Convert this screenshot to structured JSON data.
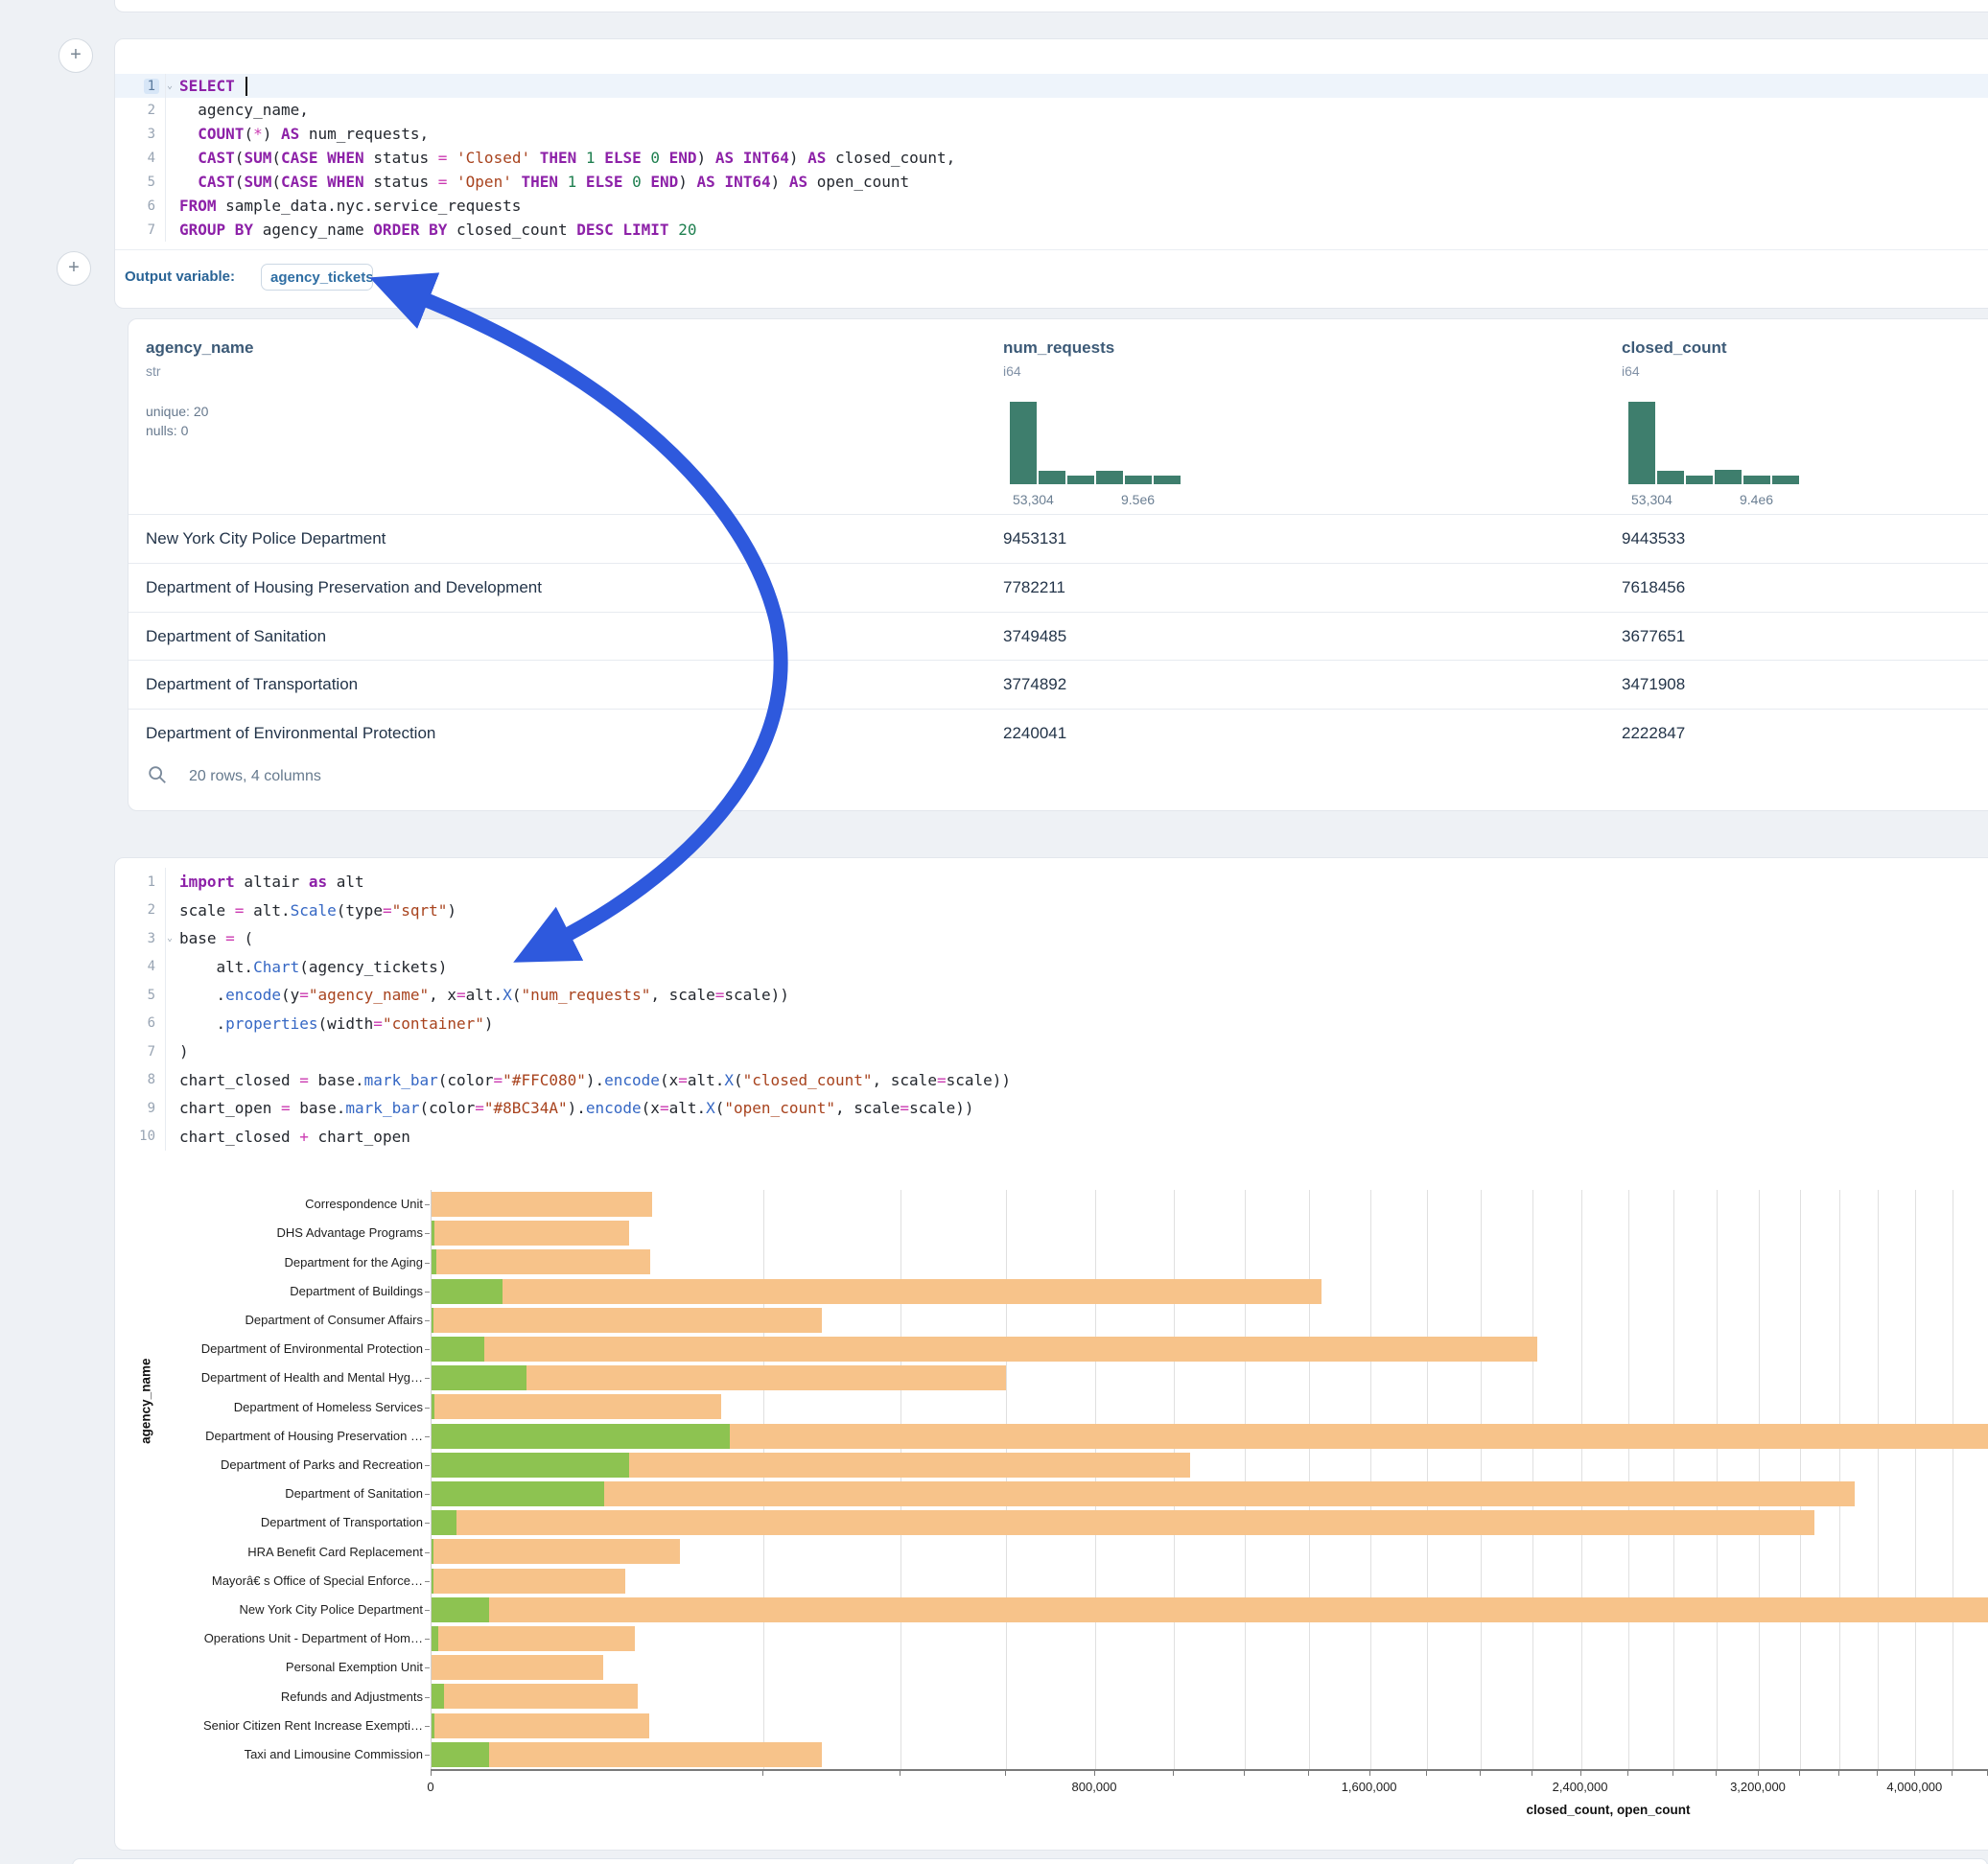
{
  "page": {
    "bg": "#eef1f5"
  },
  "sql_cell": {
    "add_button_label": "+",
    "language": "sql",
    "lines": [
      [
        [
          "k",
          "SELECT"
        ],
        [
          "p",
          " "
        ]
      ],
      [
        [
          "p",
          "  agency_name,"
        ]
      ],
      [
        [
          "p",
          "  "
        ],
        [
          "k",
          "COUNT"
        ],
        [
          "p",
          "("
        ],
        [
          "o",
          "*"
        ],
        [
          "p",
          ") "
        ],
        [
          "k",
          "AS"
        ],
        [
          "p",
          " num_requests,"
        ]
      ],
      [
        [
          "p",
          "  "
        ],
        [
          "k",
          "CAST"
        ],
        [
          "p",
          "("
        ],
        [
          "k",
          "SUM"
        ],
        [
          "p",
          "("
        ],
        [
          "k",
          "CASE WHEN"
        ],
        [
          "p",
          " status "
        ],
        [
          "o",
          "="
        ],
        [
          "p",
          " "
        ],
        [
          "s",
          "'Closed'"
        ],
        [
          "p",
          " "
        ],
        [
          "k",
          "THEN"
        ],
        [
          "p",
          " "
        ],
        [
          "n",
          "1"
        ],
        [
          "p",
          " "
        ],
        [
          "k",
          "ELSE"
        ],
        [
          "p",
          " "
        ],
        [
          "n",
          "0"
        ],
        [
          "p",
          " "
        ],
        [
          "k",
          "END"
        ],
        [
          "p",
          ") "
        ],
        [
          "k",
          "AS"
        ],
        [
          "p",
          " "
        ],
        [
          "k",
          "INT64"
        ],
        [
          "p",
          ") "
        ],
        [
          "k",
          "AS"
        ],
        [
          "p",
          " closed_count,"
        ]
      ],
      [
        [
          "p",
          "  "
        ],
        [
          "k",
          "CAST"
        ],
        [
          "p",
          "("
        ],
        [
          "k",
          "SUM"
        ],
        [
          "p",
          "("
        ],
        [
          "k",
          "CASE WHEN"
        ],
        [
          "p",
          " status "
        ],
        [
          "o",
          "="
        ],
        [
          "p",
          " "
        ],
        [
          "s",
          "'Open'"
        ],
        [
          "p",
          " "
        ],
        [
          "k",
          "THEN"
        ],
        [
          "p",
          " "
        ],
        [
          "n",
          "1"
        ],
        [
          "p",
          " "
        ],
        [
          "k",
          "ELSE"
        ],
        [
          "p",
          " "
        ],
        [
          "n",
          "0"
        ],
        [
          "p",
          " "
        ],
        [
          "k",
          "END"
        ],
        [
          "p",
          ") "
        ],
        [
          "k",
          "AS"
        ],
        [
          "p",
          " "
        ],
        [
          "k",
          "INT64"
        ],
        [
          "p",
          ") "
        ],
        [
          "k",
          "AS"
        ],
        [
          "p",
          " open_count"
        ]
      ],
      [
        [
          "k",
          "FROM"
        ],
        [
          "p",
          " sample_data.nyc.service_requests"
        ]
      ],
      [
        [
          "k",
          "GROUP BY"
        ],
        [
          "p",
          " agency_name "
        ],
        [
          "k",
          "ORDER BY"
        ],
        [
          "p",
          " closed_count "
        ],
        [
          "k",
          "DESC"
        ],
        [
          "p",
          " "
        ],
        [
          "k",
          "LIMIT"
        ],
        [
          "p",
          " "
        ],
        [
          "n",
          "20"
        ]
      ]
    ],
    "active_line": 1,
    "chevron_lines": [
      1
    ],
    "output_variable_label": "Output variable:",
    "output_variable_value": "agency_tickets"
  },
  "table": {
    "columns": [
      {
        "name": "agency_name",
        "type": "str",
        "stats": [
          "unique: 20",
          "nulls: 0"
        ]
      },
      {
        "name": "num_requests",
        "type": "i64",
        "hist": [
          100,
          16,
          10,
          16,
          10,
          10
        ],
        "axis_min": "53,304",
        "axis_max": "9.5e6"
      },
      {
        "name": "closed_count",
        "type": "i64",
        "hist": [
          100,
          16,
          10,
          17,
          10,
          10
        ],
        "axis_min": "53,304",
        "axis_max": "9.4e6"
      }
    ],
    "rows": [
      {
        "agency_name": "New York City Police Department",
        "num_requests": "9453131",
        "closed_count": "9443533"
      },
      {
        "agency_name": "Department of Housing Preservation and Development",
        "num_requests": "7782211",
        "closed_count": "7618456"
      },
      {
        "agency_name": "Department of Sanitation",
        "num_requests": "3749485",
        "closed_count": "3677651"
      },
      {
        "agency_name": "Department of Transportation",
        "num_requests": "3774892",
        "closed_count": "3471908"
      },
      {
        "agency_name": "Department of Environmental Protection",
        "num_requests": "2240041",
        "closed_count": "2222847"
      }
    ],
    "footer": "20 rows, 4 columns"
  },
  "python_cell": {
    "language": "python",
    "lines": [
      [
        [
          "k",
          "import"
        ],
        [
          "p",
          " altair "
        ],
        [
          "k",
          "as"
        ],
        [
          "p",
          " alt"
        ]
      ],
      [
        [
          "p",
          "scale "
        ],
        [
          "o",
          "="
        ],
        [
          "p",
          " alt."
        ],
        [
          "f",
          "Scale"
        ],
        [
          "p",
          "(type"
        ],
        [
          "o",
          "="
        ],
        [
          "s",
          "\"sqrt\""
        ],
        [
          "p",
          ")"
        ]
      ],
      [
        [
          "p",
          "base "
        ],
        [
          "o",
          "="
        ],
        [
          "p",
          " ("
        ]
      ],
      [
        [
          "p",
          "    alt."
        ],
        [
          "f",
          "Chart"
        ],
        [
          "p",
          "(agency_tickets)"
        ]
      ],
      [
        [
          "p",
          "    ."
        ],
        [
          "f",
          "encode"
        ],
        [
          "p",
          "(y"
        ],
        [
          "o",
          "="
        ],
        [
          "s",
          "\"agency_name\""
        ],
        [
          "p",
          ", x"
        ],
        [
          "o",
          "="
        ],
        [
          "p",
          "alt."
        ],
        [
          "f",
          "X"
        ],
        [
          "p",
          "("
        ],
        [
          "s",
          "\"num_requests\""
        ],
        [
          "p",
          ", scale"
        ],
        [
          "o",
          "="
        ],
        [
          "p",
          "scale))"
        ]
      ],
      [
        [
          "p",
          "    ."
        ],
        [
          "f",
          "properties"
        ],
        [
          "p",
          "(width"
        ],
        [
          "o",
          "="
        ],
        [
          "s",
          "\"container\""
        ],
        [
          "p",
          ")"
        ]
      ],
      [
        [
          "p",
          ")"
        ]
      ],
      [
        [
          "p",
          "chart_closed "
        ],
        [
          "o",
          "="
        ],
        [
          "p",
          " base."
        ],
        [
          "f",
          "mark_bar"
        ],
        [
          "p",
          "(color"
        ],
        [
          "o",
          "="
        ],
        [
          "s",
          "\"#FFC080\""
        ],
        [
          "p",
          ")."
        ],
        [
          "f",
          "encode"
        ],
        [
          "p",
          "(x"
        ],
        [
          "o",
          "="
        ],
        [
          "p",
          "alt."
        ],
        [
          "f",
          "X"
        ],
        [
          "p",
          "("
        ],
        [
          "s",
          "\"closed_count\""
        ],
        [
          "p",
          ", scale"
        ],
        [
          "o",
          "="
        ],
        [
          "p",
          "scale))"
        ]
      ],
      [
        [
          "p",
          "chart_open "
        ],
        [
          "o",
          "="
        ],
        [
          "p",
          " base."
        ],
        [
          "f",
          "mark_bar"
        ],
        [
          "p",
          "(color"
        ],
        [
          "o",
          "="
        ],
        [
          "s",
          "\"#8BC34A\""
        ],
        [
          "p",
          ")."
        ],
        [
          "f",
          "encode"
        ],
        [
          "p",
          "(x"
        ],
        [
          "o",
          "="
        ],
        [
          "p",
          "alt."
        ],
        [
          "f",
          "X"
        ],
        [
          "p",
          "("
        ],
        [
          "s",
          "\"open_count\""
        ],
        [
          "p",
          ", scale"
        ],
        [
          "o",
          "="
        ],
        [
          "p",
          "scale))"
        ]
      ],
      [
        [
          "p",
          "chart_closed "
        ],
        [
          "o",
          "+"
        ],
        [
          "p",
          " chart_open"
        ]
      ]
    ],
    "active_line": 0,
    "chevron_lines": [
      3
    ]
  },
  "chart_data": {
    "type": "bar",
    "orientation": "horizontal",
    "x_scale": "sqrt",
    "title": "",
    "xlabel": "closed_count, open_count",
    "ylabel": "agency_name",
    "grid": true,
    "categories": [
      "Correspondence Unit",
      "DHS Advantage Programs",
      "Department for the Aging",
      "Department of Buildings",
      "Department of Consumer Affairs",
      "Department of Environmental Protection",
      "Department of Health and Mental Hyg…",
      "Department of Homeless Services",
      "Department of Housing Preservation …",
      "Department of Parks and Recreation",
      "Department of Sanitation",
      "Department of Transportation",
      "HRA Benefit Card Replacement",
      "Mayorâ€ s Office of Special Enforce…",
      "New York City Police Department",
      "Operations Unit - Department of Hom…",
      "Personal Exemption Unit",
      "Refunds and Adjustments",
      "Senior Citizen Rent Increase Exempti…",
      "Taxi and Limousine Commission"
    ],
    "series": [
      {
        "name": "closed_count",
        "code_color": "#FFC080",
        "render_color": "#F7C38A",
        "values": [
          88000,
          71000,
          87000,
          1440000,
          277000,
          2222847,
          600000,
          152000,
          7618456,
          1045000,
          3677651,
          3471908,
          112000,
          68000,
          9443533,
          75000,
          53304,
          77000,
          86000,
          277000
        ]
      },
      {
        "name": "open_count",
        "code_color": "#8BC34A",
        "render_color": "#8DC351",
        "values": [
          0,
          20,
          40,
          9100,
          10,
          5000,
          16300,
          15,
          162000,
          71000,
          54000,
          1100,
          5,
          5,
          6100,
          80,
          0,
          270,
          15,
          6100
        ]
      }
    ],
    "x_ticks": [
      0,
      800000,
      1600000,
      2400000,
      3200000,
      4000000
    ],
    "x_tick_labels": [
      "0",
      "800,000",
      "1,600,000",
      "2,400,000",
      "3,200,000",
      "4,000,000"
    ],
    "minor_grid_step": 200000
  },
  "annotation_arrow": {
    "color": "#2e59dd"
  }
}
